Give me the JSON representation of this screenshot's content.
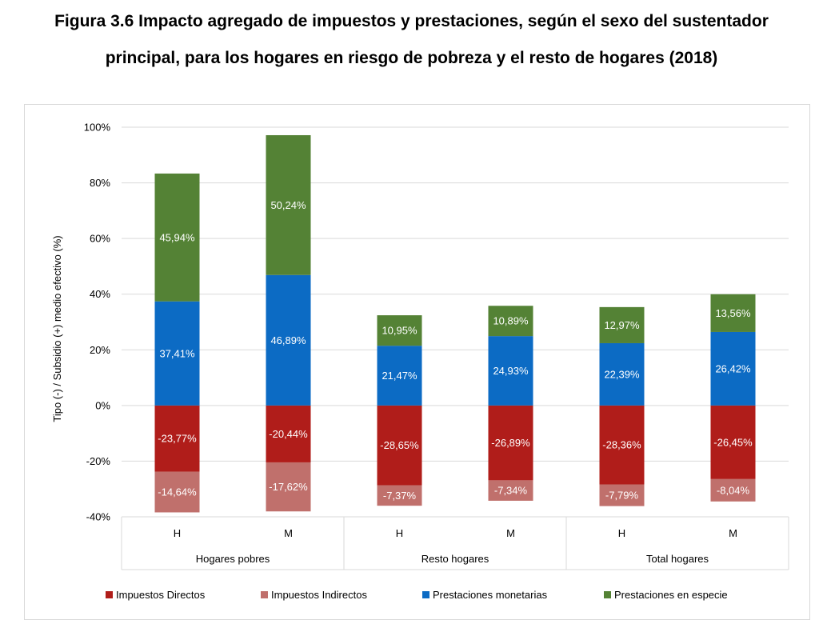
{
  "title_line1": "Figura 3.6 Impacto agregado de impuestos y prestaciones, según el sexo del sustentador",
  "title_line2": "principal, para los hogares en riesgo de pobreza y el resto de hogares (2018)",
  "chart_data": {
    "type": "bar",
    "stacked": true,
    "ylabel": "Tipo (-) / Subsidio (+) medio efectivo (%)",
    "ylim": [
      -40,
      100
    ],
    "yticks": [
      "100%",
      "80%",
      "60%",
      "40%",
      "20%",
      "0%",
      "-20%",
      "-40%"
    ],
    "ytick_values": [
      100,
      80,
      60,
      40,
      20,
      0,
      -20,
      -40
    ],
    "grid": true,
    "legend_position": "bottom",
    "groups": [
      {
        "name": "Hogares pobres",
        "categories": [
          "H",
          "M"
        ]
      },
      {
        "name": "Resto hogares",
        "categories": [
          "H",
          "M"
        ]
      },
      {
        "name": "Total hogares",
        "categories": [
          "H",
          "M"
        ]
      }
    ],
    "categories": [
      "H",
      "M",
      "H",
      "M",
      "H",
      "M"
    ],
    "series": [
      {
        "name": "Impuestos Directos",
        "color": "#b01d1a",
        "values": [
          -23.77,
          -20.44,
          -28.65,
          -26.89,
          -28.36,
          -26.45
        ],
        "labels": [
          "-23,77%",
          "-20,44%",
          "-28,65%",
          "-26,89%",
          "-28,36%",
          "-26,45%"
        ]
      },
      {
        "name": "Impuestos Indirectos",
        "color": "#c0706c",
        "values": [
          -14.64,
          -17.62,
          -7.37,
          -7.34,
          -7.79,
          -8.04
        ],
        "labels": [
          "-14,64%",
          "-17,62%",
          "-7,37%",
          "-7,34%",
          "-7,79%",
          "-8,04%"
        ]
      },
      {
        "name": "Prestaciones monetarias",
        "color": "#0c6bc4",
        "values": [
          37.41,
          46.89,
          21.47,
          24.93,
          22.39,
          26.42
        ],
        "labels": [
          "37,41%",
          "46,89%",
          "21,47%",
          "24,93%",
          "22,39%",
          "26,42%"
        ]
      },
      {
        "name": "Prestaciones en especie",
        "color": "#548235",
        "values": [
          45.94,
          50.24,
          10.95,
          10.89,
          12.97,
          13.56
        ],
        "labels": [
          "45,94%",
          "50,24%",
          "10,95%",
          "10,89%",
          "12,97%",
          "13,56%"
        ]
      }
    ]
  }
}
